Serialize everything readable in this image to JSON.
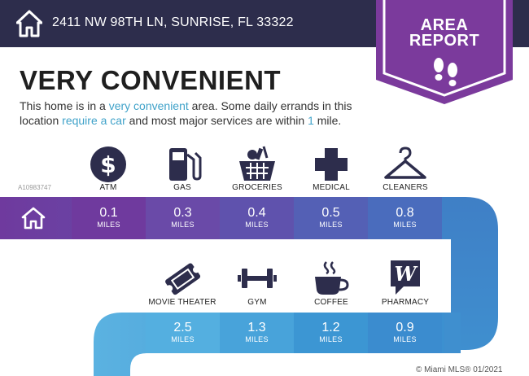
{
  "header": {
    "home_icon": "house-icon",
    "address": "2411 NW 98TH LN, SUNRISE, FL 33322",
    "badge_line1": "AREA",
    "badge_line2": "REPORT",
    "badge_icon": "footprints-icon",
    "colors": {
      "bar": "#2d2d4c",
      "badge": "#7b3a9c"
    }
  },
  "headline": "VERY CONVENIENT",
  "description": {
    "p1": "This home is in a ",
    "hl1": "very convenient",
    "p2": " area. Some daily errands in this location ",
    "hl2": "require a car",
    "p3": " and most major services are within ",
    "hl3": "1",
    "p4": " mile."
  },
  "watermark": "A10983747",
  "row1": [
    {
      "label": "ATM",
      "icon": "dollar-icon",
      "distance": "0.1",
      "unit": "MILES"
    },
    {
      "label": "GAS",
      "icon": "gas-pump-icon",
      "distance": "0.3",
      "unit": "MILES"
    },
    {
      "label": "GROCERIES",
      "icon": "basket-icon",
      "distance": "0.4",
      "unit": "MILES"
    },
    {
      "label": "MEDICAL",
      "icon": "medical-cross-icon",
      "distance": "0.5",
      "unit": "MILES"
    },
    {
      "label": "CLEANERS",
      "icon": "hanger-icon",
      "distance": "0.8",
      "unit": "MILES"
    }
  ],
  "row2": [
    {
      "label": "MOVIE THEATER",
      "icon": "ticket-icon",
      "distance": "2.5",
      "unit": "MILES"
    },
    {
      "label": "GYM",
      "icon": "dumbbell-icon",
      "distance": "1.3",
      "unit": "MILES"
    },
    {
      "label": "COFFEE",
      "icon": "coffee-cup-icon",
      "distance": "1.2",
      "unit": "MILES"
    },
    {
      "label": "PHARMACY",
      "icon": "pharmacy-logo-icon",
      "distance": "0.9",
      "unit": "MILES"
    }
  ],
  "band_colors": [
    "#6f3a9e",
    "#6a4aa8",
    "#5a54ad",
    "#4f62b7",
    "#466fc0",
    "#3f84c9",
    "#3f8fcf",
    "#4ea7dd"
  ],
  "copyright": "© Miami MLS® 01/2021"
}
